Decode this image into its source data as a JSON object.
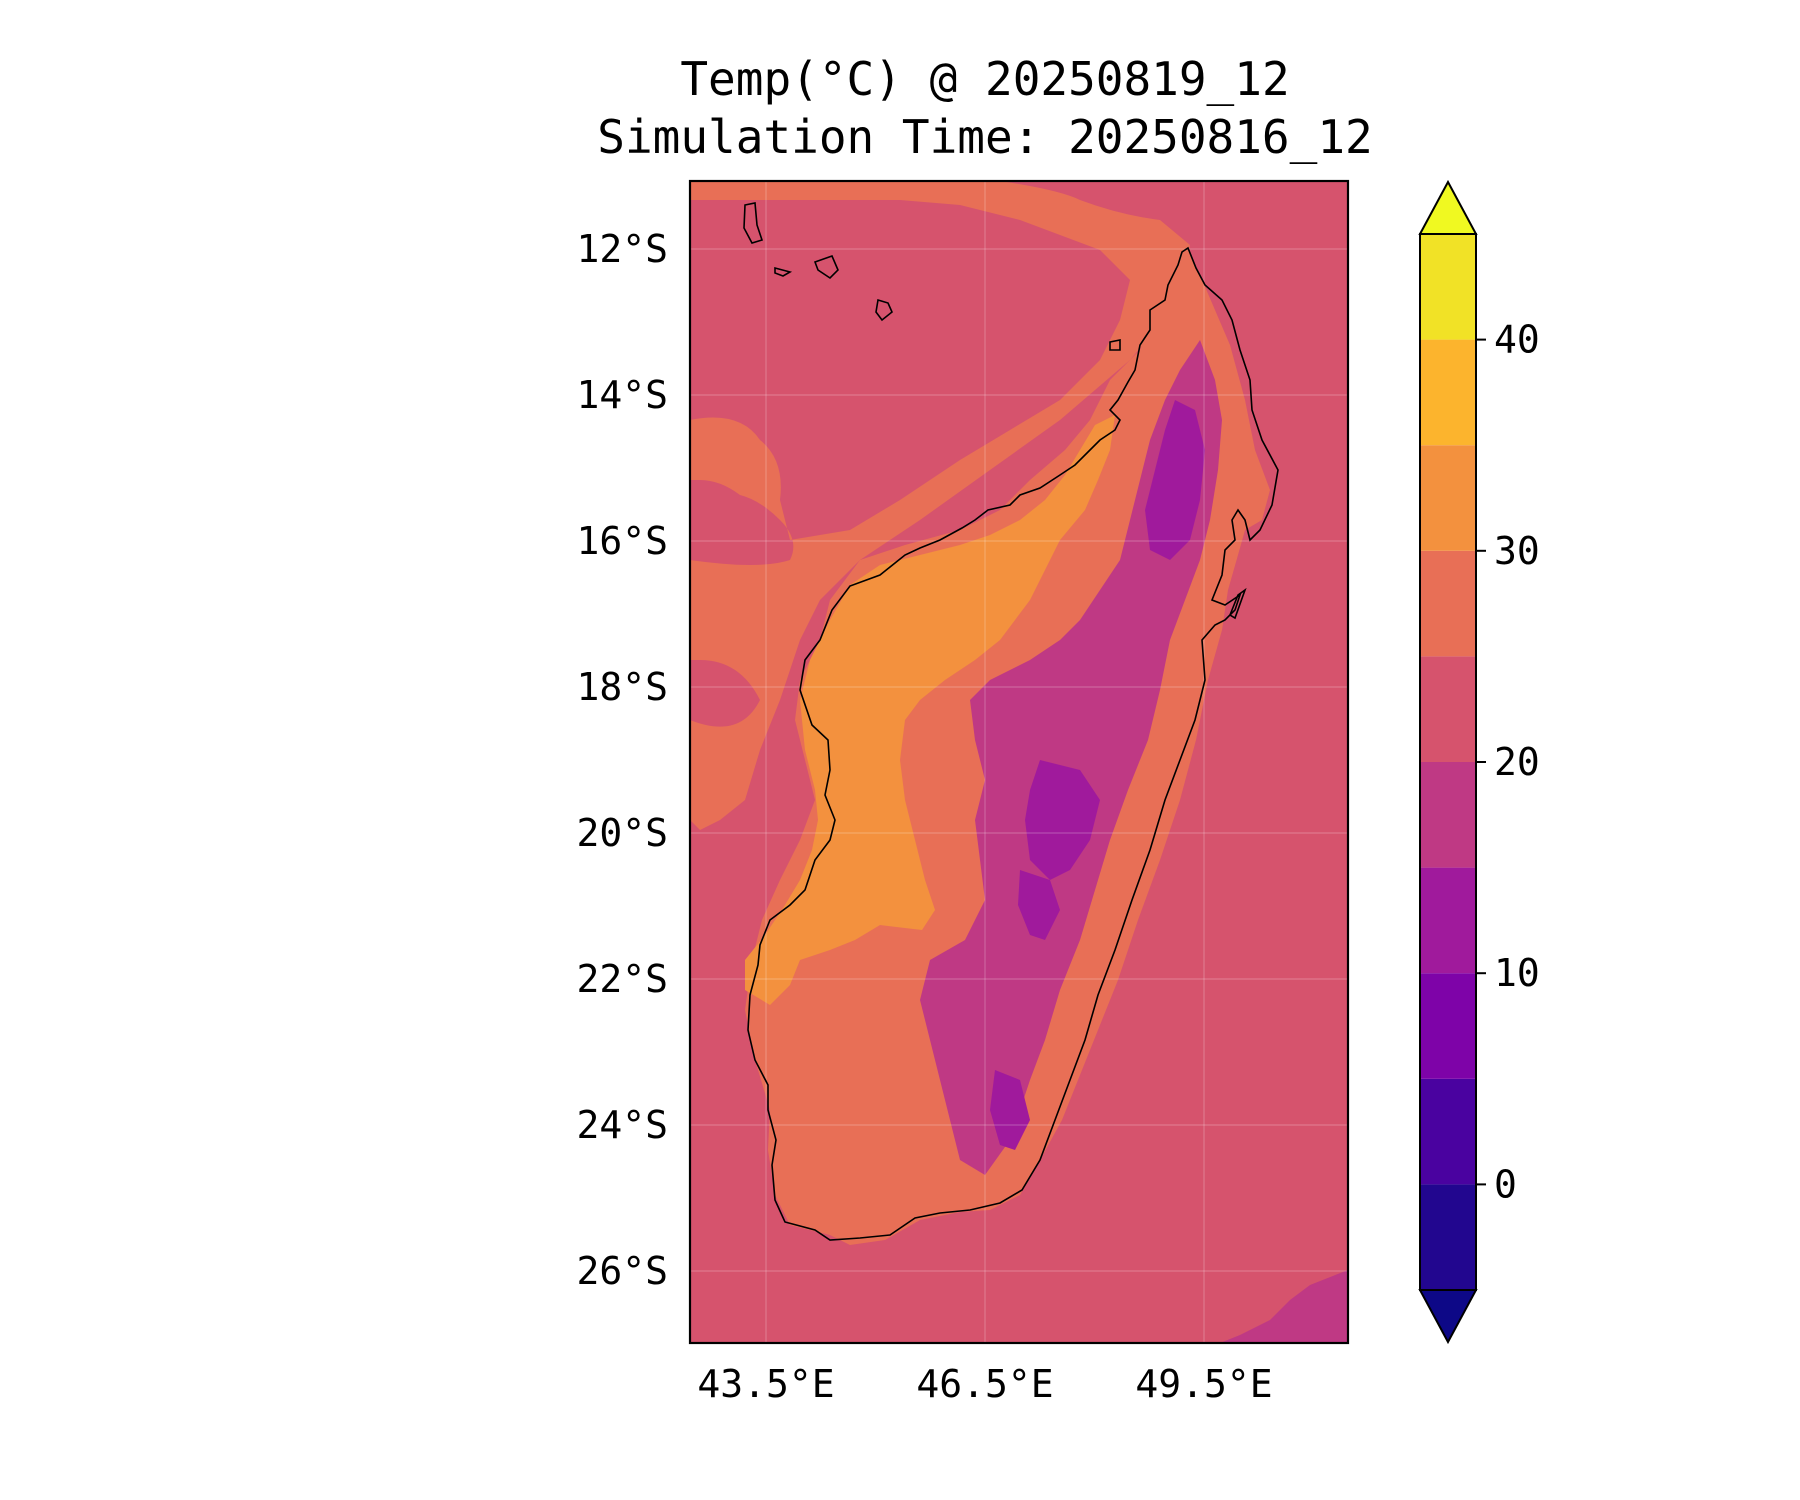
{
  "title": {
    "line1": "Temp(°C) @ 20250819_12",
    "line2": "Simulation Time: 20250816_12"
  },
  "map": {
    "region": "Madagascar",
    "variable": "Temperature",
    "unit": "°C",
    "lat_range": [
      -27.0,
      -11.0
    ],
    "lon_range": [
      42.5,
      51.5
    ],
    "lat_ticks": [
      "12°S",
      "14°S",
      "16°S",
      "18°S",
      "20°S",
      "22°S",
      "24°S",
      "26°S"
    ],
    "lon_ticks": [
      "43.5°E",
      "46.5°E",
      "49.5°E"
    ],
    "gridlines": true,
    "ocean_level_band": "20–25",
    "coastal_level_band": "25–30",
    "west_interior_band": "30–35",
    "east_highlands_band": "10–20"
  },
  "colorbar": {
    "levels": [
      -5,
      0,
      5,
      10,
      15,
      20,
      25,
      30,
      35,
      40,
      45
    ],
    "tick_labels": [
      "0",
      "10",
      "20",
      "30",
      "40"
    ],
    "tick_values": [
      0,
      10,
      20,
      30,
      40
    ],
    "extend": "both",
    "colors": {
      "under": "#0d0887",
      "bands": [
        "#22068f",
        "#4a02a0",
        "#7e03a8",
        "#a01a9c",
        "#bf3984",
        "#d6536d",
        "#e86f56",
        "#f3913e",
        "#fcb42d",
        "#f1e226"
      ],
      "over": "#f0f921"
    }
  }
}
